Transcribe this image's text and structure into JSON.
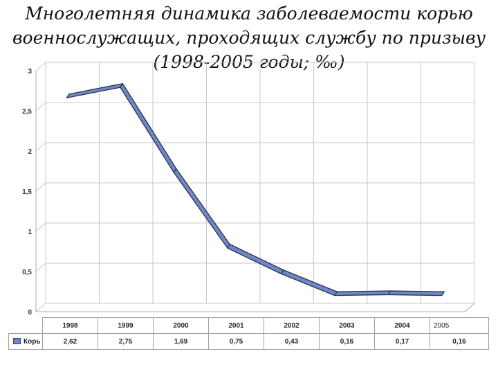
{
  "title": {
    "line1": "Многолетняя динамика заболеваемости корью",
    "line2": "военнослужащих, проходящих службу по призыву",
    "line3": "(1998-2005 годы; ‰)"
  },
  "chart_data": {
    "type": "line",
    "style": "3d-ribbon",
    "categories": [
      "1998",
      "1999",
      "2000",
      "2001",
      "2002",
      "2003",
      "2004",
      "2005"
    ],
    "series": [
      {
        "name": "Корь",
        "values": [
          2.62,
          2.75,
          1.69,
          0.75,
          0.43,
          0.16,
          0.17,
          0.16
        ]
      }
    ],
    "table_values": [
      "2,62",
      "2,75",
      "1,69",
      "0,75",
      "0,43",
      "0,16",
      "0,17",
      "0,16"
    ],
    "ylim": [
      0,
      3
    ],
    "yticks": [
      "0",
      "0,5",
      "1",
      "1,5",
      "2",
      "2,5",
      "3"
    ],
    "grid": true,
    "legend": "data-table",
    "colors": {
      "ribbon": "#6f87c4",
      "edge": "#1f2a48",
      "grid": "#c8c8c8"
    }
  }
}
